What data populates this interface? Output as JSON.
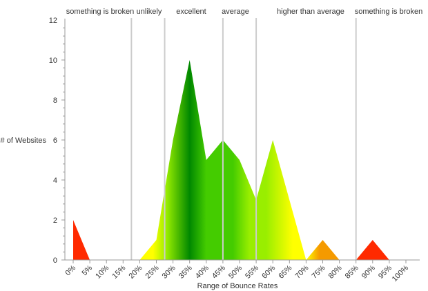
{
  "chart_data": {
    "type": "area",
    "title": "",
    "xlabel": "Range of Bounce Rates",
    "ylabel": "# of Websites",
    "ylim": [
      0,
      12
    ],
    "yticks": [
      "0",
      "2",
      "4",
      "6",
      "8",
      "10",
      "12"
    ],
    "xlim": [
      0,
      100
    ],
    "categories": [
      "0%",
      "5%",
      "10%",
      "15%",
      "20%",
      "25%",
      "30%",
      "35%",
      "40%",
      "45%",
      "50%",
      "55%",
      "60%",
      "65%",
      "70%",
      "75%",
      "80%",
      "85%",
      "90%",
      "95%",
      "100%"
    ],
    "series": [
      {
        "values": [
          2,
          0,
          0,
          0,
          0,
          1,
          6,
          10,
          5,
          6,
          5,
          3,
          6,
          3,
          0,
          1,
          0,
          0,
          1,
          0,
          0
        ]
      }
    ],
    "zone_dividers": [
      17.5,
      27.5,
      45,
      55,
      85
    ],
    "zones": [
      {
        "label": "something is broken",
        "start": 0,
        "end": 17.5
      },
      {
        "label": "unlikely",
        "start": 17.5,
        "end": 27.5
      },
      {
        "label": "excellent",
        "start": 27.5,
        "end": 45
      },
      {
        "label": "average",
        "start": 45,
        "end": 55
      },
      {
        "label": "higher than average",
        "start": 55,
        "end": 85
      },
      {
        "label": "something is broken",
        "start": 85,
        "end": 100
      }
    ],
    "colors": {
      "red": "#ff2a00",
      "orange": "#f59a00",
      "yellow": "#ffff00",
      "lime": "#99ee00",
      "green": "#44cc00",
      "dark_green": "#008800",
      "axis": "#999999",
      "divider": "#cccccc",
      "text": "#333333"
    },
    "grid": false,
    "legend": "none"
  }
}
